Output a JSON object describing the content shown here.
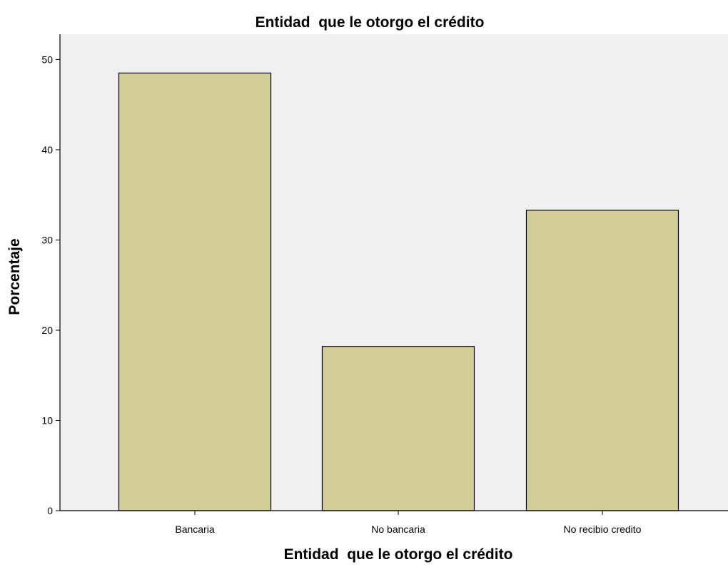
{
  "chart_data": {
    "type": "bar",
    "title": "Entidad  que le otorgo el crédito",
    "xlabel": "Entidad  que le otorgo el crédito",
    "ylabel": "Porcentaje",
    "categories": [
      "Bancaria",
      "No bancaria",
      "No recibio credito"
    ],
    "values": [
      48.5,
      18.2,
      33.3
    ],
    "ylim": [
      0,
      52.8
    ],
    "yticks": [
      0,
      10,
      20,
      30,
      40,
      50
    ],
    "grid": false,
    "legend": "none",
    "colors": {
      "bar_fill": "#d3cd98",
      "bar_stroke": "#000000",
      "plot_background": "#f0f0f0",
      "axis": "#000000"
    }
  }
}
